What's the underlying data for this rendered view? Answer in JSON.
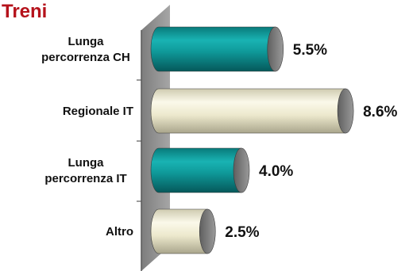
{
  "chart_data": {
    "type": "bar",
    "orientation": "horizontal",
    "title": "Treni",
    "categories": [
      [
        "Lunga",
        "percorrenza CH"
      ],
      [
        "Regionale IT"
      ],
      [
        "Lunga",
        "percorrenza IT"
      ],
      [
        "Altro"
      ]
    ],
    "values": [
      5.5,
      8.6,
      4.0,
      2.5
    ],
    "value_labels": [
      "5.5%",
      "8.6%",
      "4.0%",
      "2.5%"
    ],
    "xlim": [
      0,
      10
    ],
    "bar_colors": [
      "#0f9a9a",
      "#f3f0d8",
      "#0f9a9a",
      "#f3f0d8"
    ],
    "bar_style": "3d-cylinder",
    "wall_color": "#8f8f8f",
    "grid": false,
    "legend": "none",
    "title_color": "#b5121b"
  }
}
